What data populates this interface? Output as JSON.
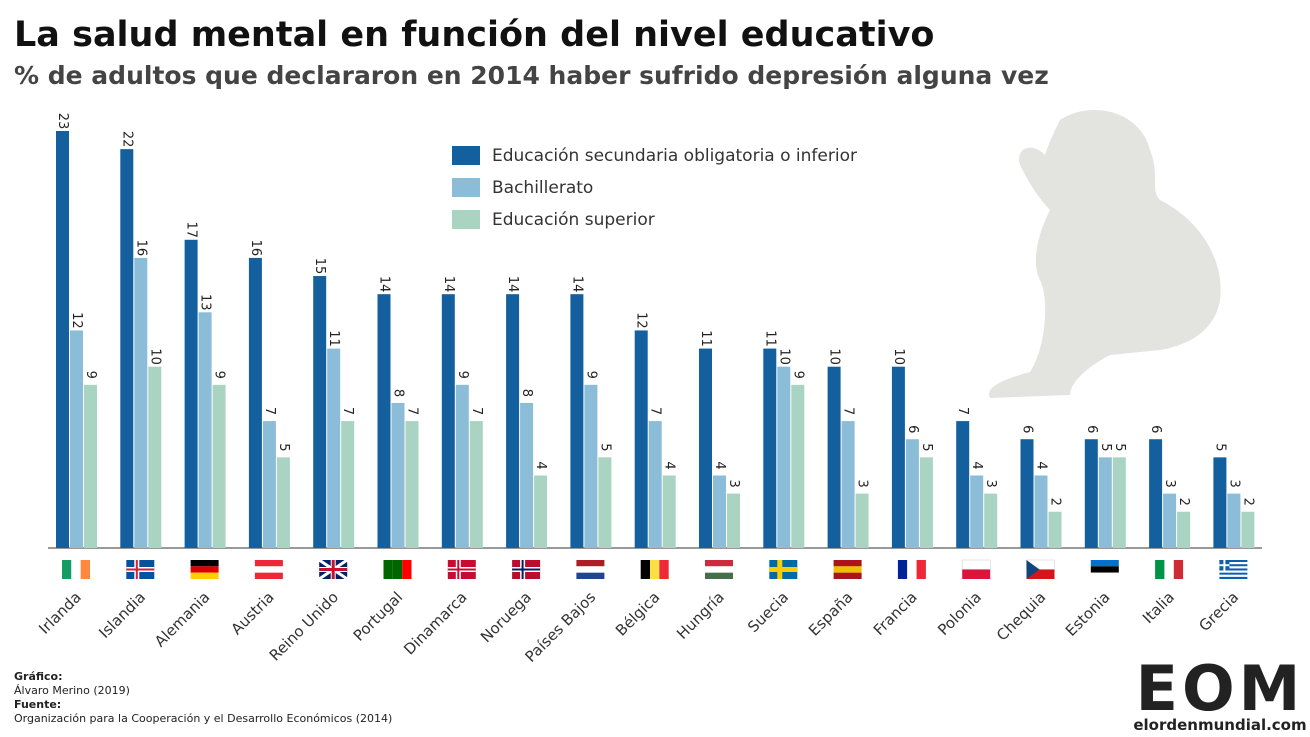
{
  "chart_data": {
    "type": "bar",
    "title": "La salud mental en función del nivel educativo",
    "subtitle": "% de adultos que declararon en 2014 haber sufrido depresión alguna vez",
    "categories": [
      "Irlanda",
      "Islandia",
      "Alemania",
      "Austria",
      "Reino Unido",
      "Portugal",
      "Dinamarca",
      "Noruega",
      "Países Bajos",
      "Bélgica",
      "Hungría",
      "Suecia",
      "España",
      "Francia",
      "Polonia",
      "Chequia",
      "Estonia",
      "Italia",
      "Grecia"
    ],
    "series": [
      {
        "name": "Educación secundaria obligatoria o inferior",
        "color": "#14609f",
        "values": [
          23,
          22,
          17,
          16,
          15,
          14,
          14,
          14,
          14,
          12,
          11,
          11,
          10,
          10,
          7,
          6,
          6,
          6,
          5
        ]
      },
      {
        "name": "Bachillerato",
        "color": "#8bbcd8",
        "values": [
          12,
          16,
          13,
          7,
          11,
          8,
          9,
          8,
          9,
          7,
          4,
          10,
          7,
          6,
          4,
          4,
          5,
          3,
          3
        ]
      },
      {
        "name": "Educación superior",
        "color": "#a9d4c1",
        "values": [
          9,
          10,
          9,
          5,
          7,
          7,
          7,
          4,
          5,
          4,
          3,
          9,
          3,
          5,
          3,
          2,
          5,
          2,
          2
        ]
      }
    ]
  },
  "credits": {
    "graphic_label": "Gráfico:",
    "graphic": "Álvaro Merino (2019)",
    "source_label": "Fuente:",
    "source": "Organización para la Cooperación y el Desarrollo Económicos (2014)"
  },
  "logo": {
    "mark": "EOM",
    "site": "elordenmundial.com"
  }
}
